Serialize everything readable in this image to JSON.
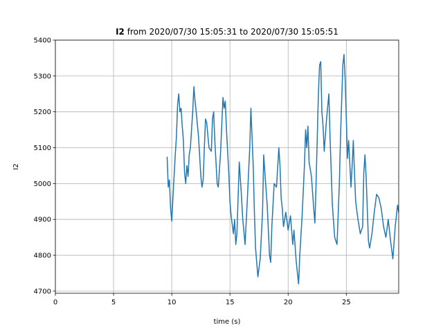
{
  "chart_data": {
    "type": "line",
    "title_variable": "I2",
    "title": "from 2020/07/30 15:05:31 to 2020/07/30 15:05:51",
    "x_label": "time (s)",
    "y_label": "I2",
    "xlim": [
      0,
      29.5
    ],
    "ylim": [
      4694,
      5400
    ],
    "xticks": [
      0,
      5,
      10,
      15,
      20,
      25
    ],
    "yticks": [
      4700,
      4800,
      4900,
      5000,
      5100,
      5200,
      5300,
      5400
    ],
    "grid": true,
    "series": [
      {
        "name": "I2",
        "color": "#1f77b4",
        "x": [
          9.6,
          9.7,
          9.8,
          9.9,
          10.0,
          10.1,
          10.3,
          10.4,
          10.5,
          10.6,
          10.7,
          10.8,
          10.9,
          11.0,
          11.1,
          11.2,
          11.3,
          11.4,
          11.5,
          11.6,
          11.8,
          11.9,
          12.0,
          12.1,
          12.3,
          12.5,
          12.6,
          12.7,
          12.8,
          12.9,
          13.0,
          13.2,
          13.4,
          13.5,
          13.6,
          13.7,
          13.8,
          13.9,
          14.0,
          14.2,
          14.4,
          14.5,
          14.6,
          14.7,
          14.9,
          15.0,
          15.1,
          15.3,
          15.4,
          15.5,
          15.6,
          15.8,
          16.0,
          16.1,
          16.3,
          16.5,
          16.7,
          16.8,
          16.9,
          17.0,
          17.1,
          17.2,
          17.4,
          17.6,
          17.8,
          17.9,
          18.0,
          18.2,
          18.4,
          18.5,
          18.6,
          18.8,
          19.0,
          19.2,
          19.3,
          19.4,
          19.5,
          19.6,
          19.8,
          20.0,
          20.2,
          20.4,
          20.5,
          20.7,
          20.9,
          21.0,
          21.2,
          21.4,
          21.5,
          21.6,
          21.7,
          21.8,
          22.0,
          22.2,
          22.3,
          22.4,
          22.6,
          22.7,
          22.8,
          22.9,
          23.0,
          23.1,
          23.3,
          23.5,
          23.6,
          23.8,
          24.0,
          24.2,
          24.4,
          24.5,
          24.7,
          24.8,
          24.9,
          25.0,
          25.1,
          25.2,
          25.4,
          25.5,
          25.6,
          25.7,
          25.8,
          26.0,
          26.2,
          26.4,
          26.5,
          26.6,
          26.7,
          26.9,
          27.0,
          27.2,
          27.4,
          27.6,
          27.8,
          28.0,
          28.2,
          28.4,
          28.6,
          28.8,
          29.0,
          29.2,
          29.4,
          29.5
        ],
        "values": [
          5075,
          4990,
          5010,
          4930,
          4895,
          4960,
          5080,
          5130,
          5220,
          5250,
          5200,
          5210,
          5160,
          5120,
          5030,
          5000,
          5050,
          5020,
          5080,
          5100,
          5200,
          5270,
          5230,
          5200,
          5130,
          5020,
          4990,
          5010,
          5100,
          5180,
          5170,
          5100,
          5090,
          5180,
          5200,
          5120,
          5060,
          5000,
          4990,
          5090,
          5240,
          5210,
          5230,
          5150,
          5030,
          4950,
          4910,
          4860,
          4900,
          4830,
          4860,
          5060,
          4960,
          4900,
          4830,
          4960,
          5100,
          5210,
          5130,
          5050,
          4920,
          4820,
          4740,
          4790,
          4920,
          5080,
          5030,
          4940,
          4800,
          4780,
          4880,
          5000,
          4990,
          5100,
          5050,
          4960,
          4930,
          4880,
          4920,
          4870,
          4910,
          4830,
          4870,
          4780,
          4720,
          4800,
          4910,
          5050,
          5150,
          5100,
          5160,
          5060,
          5020,
          4930,
          4890,
          5000,
          5250,
          5330,
          5340,
          5200,
          5160,
          5090,
          5180,
          5250,
          5130,
          4940,
          4850,
          4830,
          5000,
          5130,
          5330,
          5360,
          5290,
          5180,
          5070,
          5120,
          4990,
          5050,
          5120,
          5030,
          4950,
          4900,
          4860,
          4880,
          5030,
          5080,
          5020,
          4840,
          4820,
          4860,
          4920,
          4970,
          4960,
          4930,
          4880,
          4850,
          4900,
          4840,
          4790,
          4880,
          4940,
          4920
        ]
      }
    ]
  }
}
